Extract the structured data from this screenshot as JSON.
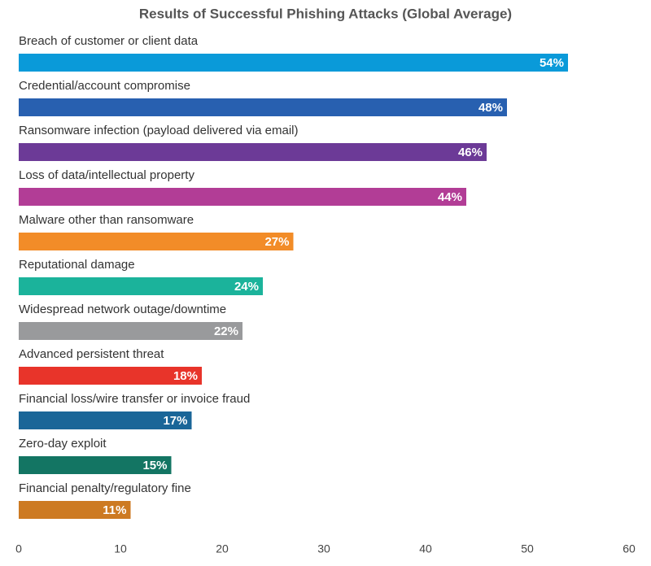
{
  "chart_data": {
    "type": "bar",
    "orientation": "horizontal",
    "title": "Results of Successful Phishing Attacks (Global Average)",
    "categories": [
      "Breach of customer or client data",
      "Credential/account compromise",
      "Ransomware infection (payload delivered via email)",
      "Loss of data/intellectual property",
      "Malware other than ransomware",
      "Reputational damage",
      "Widespread network outage/downtime",
      "Advanced persistent threat",
      "Financial loss/wire transfer or invoice fraud",
      "Zero-day exploit",
      "Financial penalty/regulatory fine"
    ],
    "values": [
      54,
      48,
      46,
      44,
      27,
      24,
      22,
      18,
      17,
      15,
      11
    ],
    "value_labels": [
      "54%",
      "48%",
      "46%",
      "44%",
      "27%",
      "24%",
      "22%",
      "18%",
      "17%",
      "15%",
      "11%"
    ],
    "colors": [
      "#0a9ad9",
      "#2860b0",
      "#6c3a97",
      "#b23d96",
      "#f28c28",
      "#1bb39b",
      "#999a9c",
      "#e8342a",
      "#1a6698",
      "#137563",
      "#cd7a22"
    ],
    "xlim": [
      0,
      60
    ],
    "xticks": [
      0,
      10,
      20,
      30,
      40,
      50,
      60
    ]
  }
}
